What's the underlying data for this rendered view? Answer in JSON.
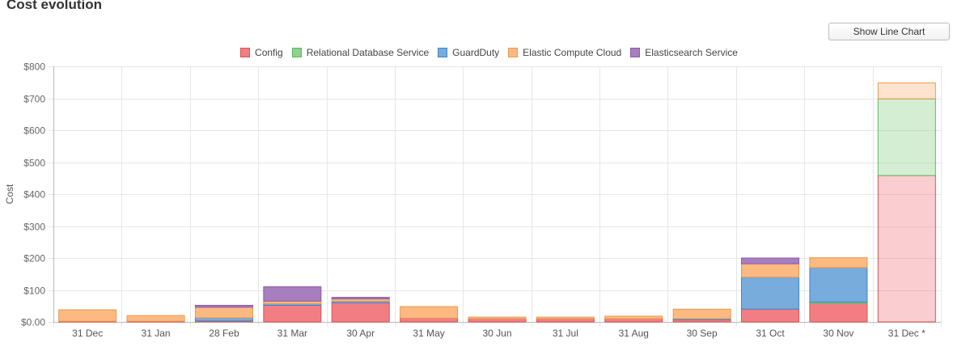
{
  "header": {
    "title": "Cost evolution"
  },
  "controls": {
    "show_line_chart_label": "Show Line Chart"
  },
  "chart_data": {
    "type": "bar",
    "stacked": true,
    "ylabel": "Cost",
    "xlabel": "",
    "ylim": [
      0,
      800
    ],
    "y_ticks": [
      "$0.00",
      "$100",
      "$200",
      "$300",
      "$400",
      "$500",
      "$600",
      "$700",
      "$800"
    ],
    "y_tick_values": [
      0,
      100,
      200,
      300,
      400,
      500,
      600,
      700,
      800
    ],
    "grid": true,
    "legend_position": "top-center",
    "categories": [
      "31 Dec",
      "31 Jan",
      "28 Feb",
      "31 Mar",
      "30 Apr",
      "31 May",
      "30 Jun",
      "31 Jul",
      "31 Aug",
      "30 Sep",
      "31 Oct",
      "30 Nov",
      "31 Dec *"
    ],
    "forecast_categories": [
      "31 Dec *"
    ],
    "series": [
      {
        "name": "Config",
        "color": "#f27e84",
        "border": "#d9534f",
        "values": [
          2,
          2,
          3,
          52,
          60,
          12,
          10,
          10,
          10,
          7,
          40,
          58,
          458
        ]
      },
      {
        "name": "Relational Database Service",
        "color": "#8fd18f",
        "border": "#5cb85c",
        "values": [
          0,
          0,
          0,
          0,
          0,
          0,
          0,
          0,
          0,
          0,
          0,
          4,
          240
        ]
      },
      {
        "name": "GuardDuty",
        "color": "#78acdd",
        "border": "#3f84c5",
        "values": [
          0,
          0,
          10,
          5,
          5,
          0,
          0,
          0,
          0,
          3,
          100,
          108,
          0
        ]
      },
      {
        "name": "Elastic Compute Cloud",
        "color": "#fdb982",
        "border": "#e89a4f",
        "values": [
          36,
          18,
          33,
          8,
          7,
          36,
          5,
          5,
          8,
          30,
          42,
          31,
          50
        ]
      },
      {
        "name": "Elasticsearch Service",
        "color": "#a87fbe",
        "border": "#8a5aa5",
        "values": [
          0,
          0,
          6,
          45,
          5,
          0,
          0,
          0,
          0,
          0,
          18,
          0,
          0
        ]
      }
    ]
  }
}
